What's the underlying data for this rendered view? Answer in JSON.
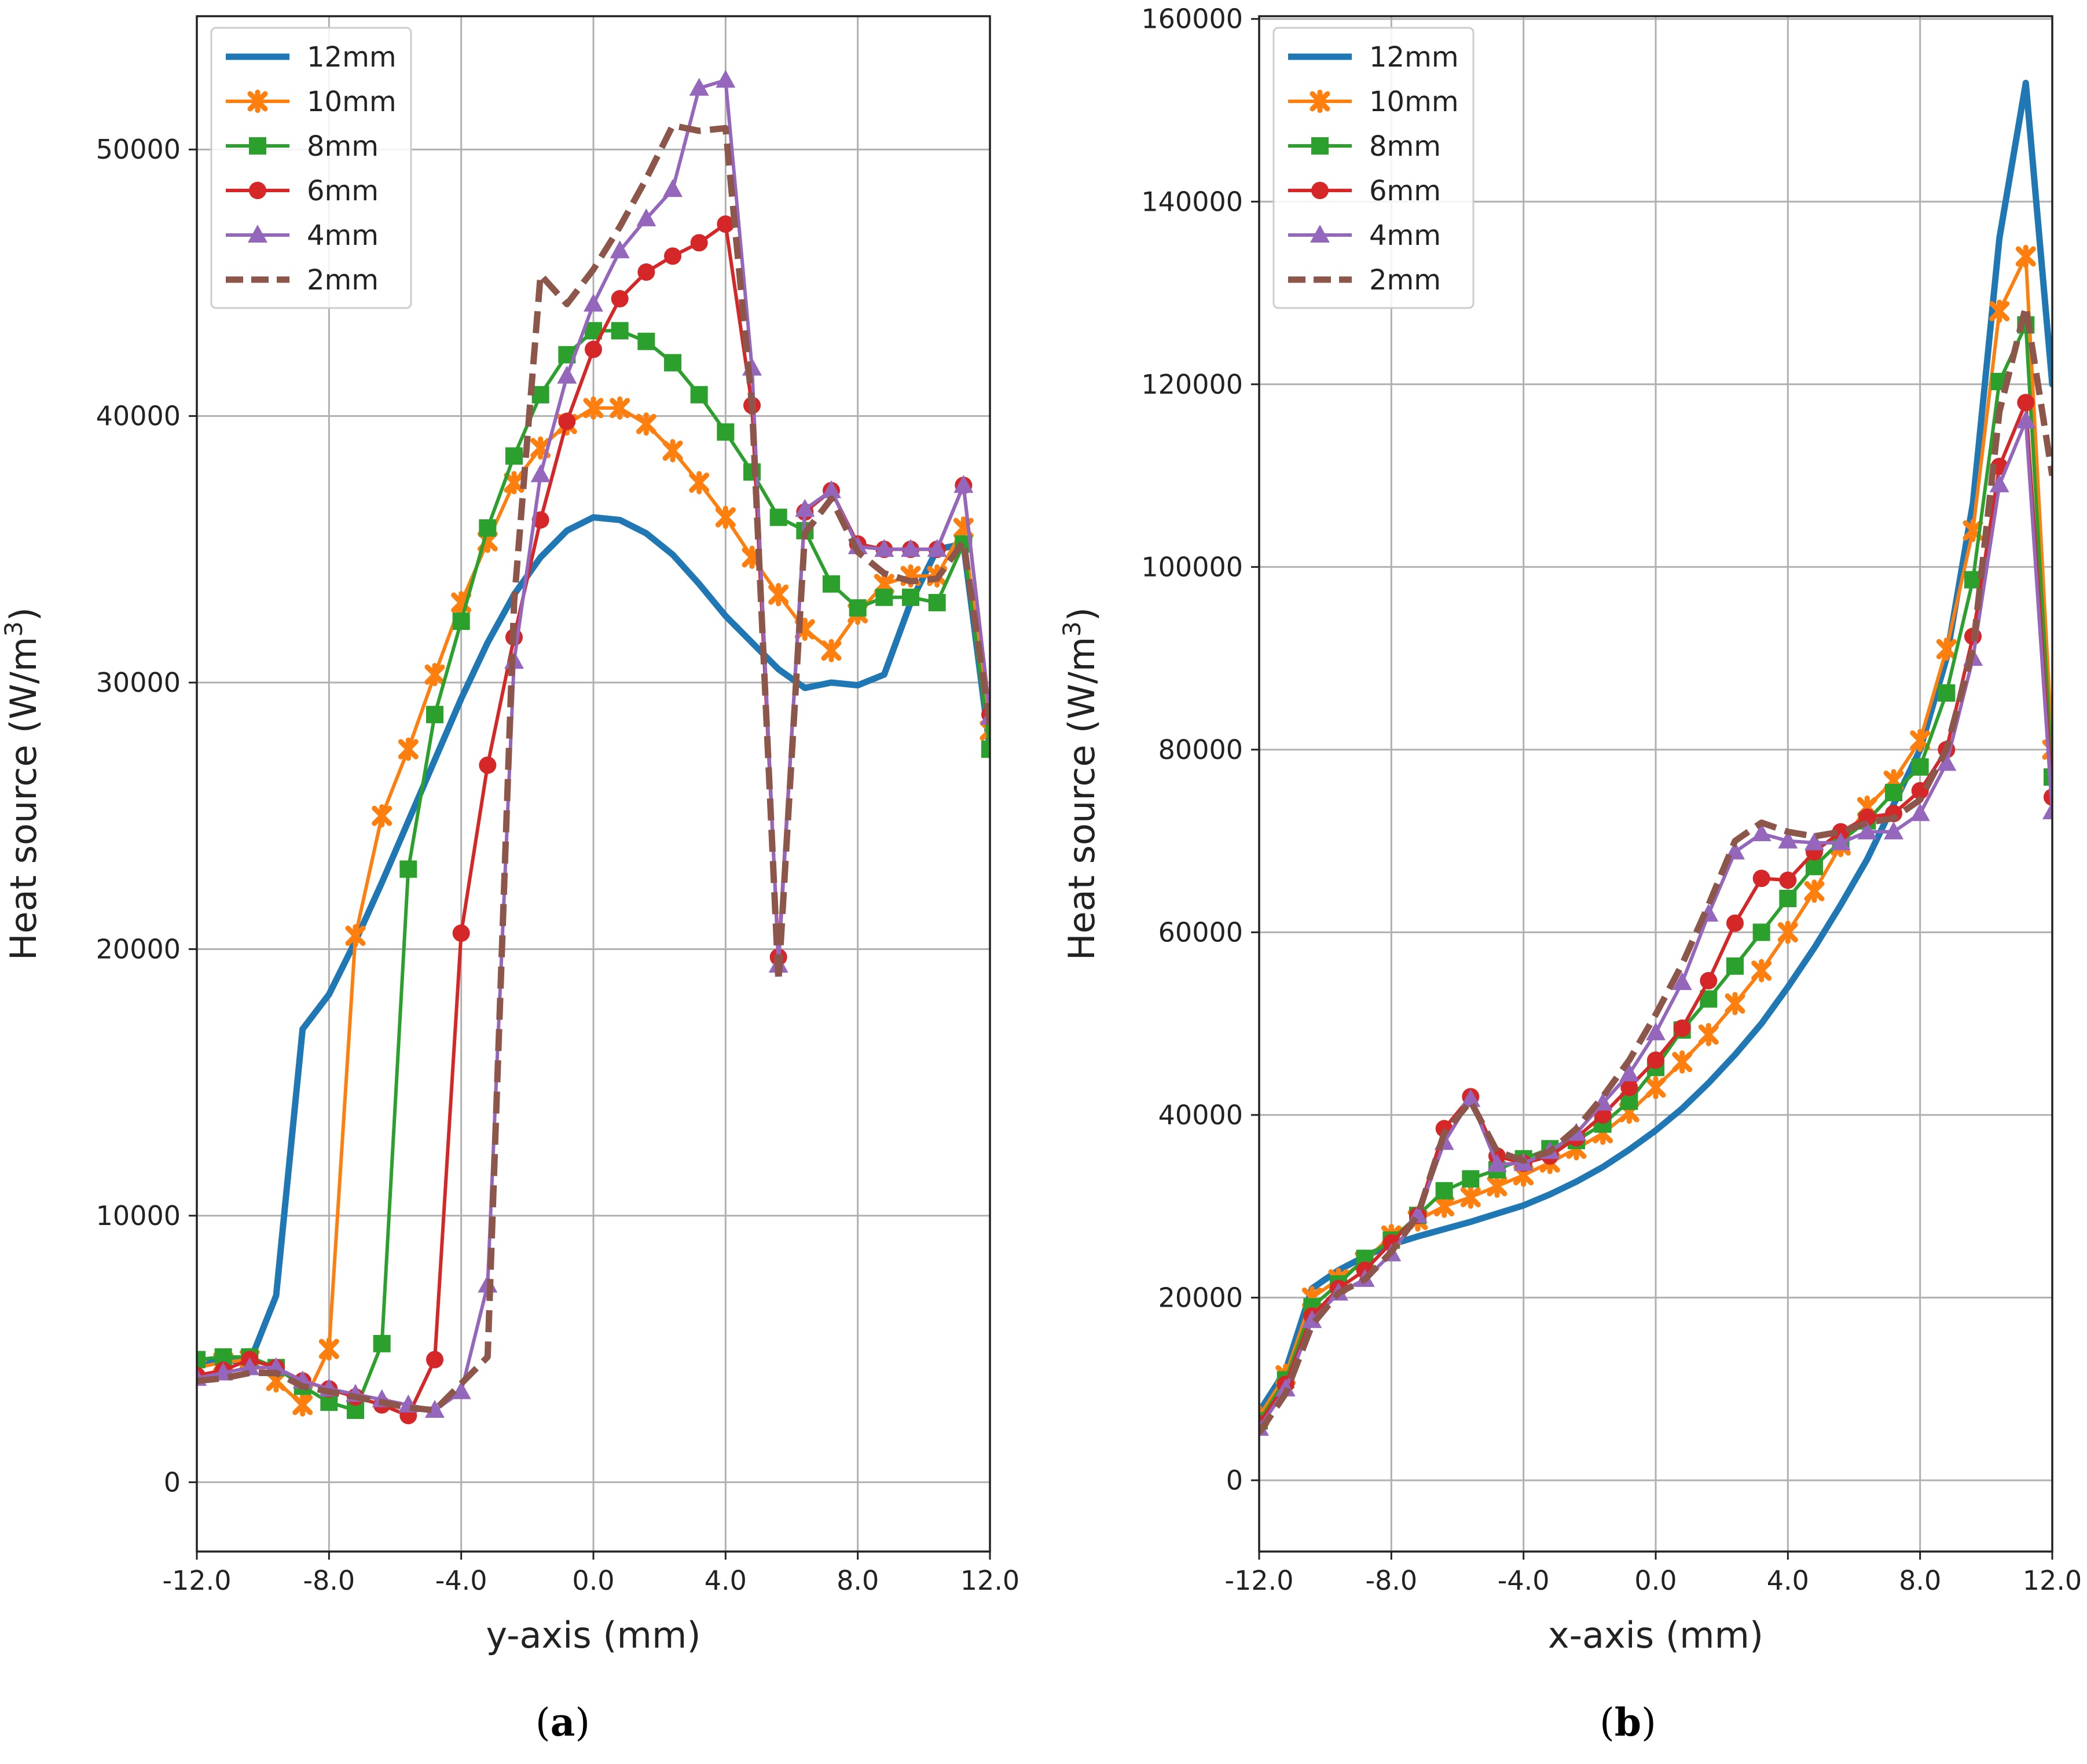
{
  "series_styles": [
    {
      "name": "12mm",
      "color": "#1f77b4",
      "marker": "none",
      "dash": "solid"
    },
    {
      "name": "10mm",
      "color": "#ff7f0e",
      "marker": "x",
      "dash": "solid"
    },
    {
      "name": "8mm",
      "color": "#2ca02c",
      "marker": "square",
      "dash": "solid"
    },
    {
      "name": "6mm",
      "color": "#d62728",
      "marker": "circle",
      "dash": "solid"
    },
    {
      "name": "4mm",
      "color": "#9467bd",
      "marker": "triangle",
      "dash": "solid"
    },
    {
      "name": "2mm",
      "color": "#8c564b",
      "marker": "none",
      "dash": "dashed"
    }
  ],
  "chart_data": [
    {
      "type": "line",
      "panel_label": "a",
      "xlabel": "y-axis (mm)",
      "ylabel": "Heat source (W/m",
      "ylabel_sup": "3",
      "ylabel_close": ")",
      "xlim": [
        -12,
        12
      ],
      "ylim": [
        -2600,
        55000
      ],
      "xticks": [
        -12,
        -8,
        -4,
        0,
        4,
        8,
        12
      ],
      "xtick_labels": [
        "-12.0",
        "-8.0",
        "-4.0",
        "0.0",
        "4.0",
        "8.0",
        "12.0"
      ],
      "yticks": [
        0,
        10000,
        20000,
        30000,
        40000,
        50000
      ],
      "ytick_labels": [
        "0",
        "10000",
        "20000",
        "30000",
        "40000",
        "50000"
      ],
      "grid": true,
      "legend": "top-left",
      "x": [
        -12,
        -11.2,
        -10.4,
        -9.6,
        -8.8,
        -8,
        -7.2,
        -6.4,
        -5.6,
        -4.8,
        -4,
        -3.2,
        -2.4,
        -1.6,
        -0.8,
        0,
        0.8,
        1.6,
        2.4,
        3.2,
        4,
        4.8,
        5.6,
        6.4,
        7.2,
        8,
        8.8,
        9.6,
        10.4,
        11.2,
        12
      ],
      "series": [
        {
          "name": "12mm",
          "values": [
            4500,
            4600,
            4500,
            7000,
            17000,
            18300,
            20300,
            22500,
            24800,
            27100,
            29400,
            31500,
            33300,
            34700,
            35700,
            36200,
            36100,
            35600,
            34800,
            33700,
            32500,
            31500,
            30500,
            29800,
            30000,
            29900,
            30300,
            33000,
            35000,
            35200,
            27500
          ]
        },
        {
          "name": "10mm",
          "values": [
            4300,
            4500,
            4600,
            3800,
            2900,
            5000,
            20500,
            25000,
            27500,
            30300,
            33000,
            35300,
            37500,
            38800,
            39700,
            40300,
            40300,
            39700,
            38700,
            37500,
            36200,
            34700,
            33300,
            32000,
            31200,
            32600,
            33700,
            34000,
            34000,
            35800,
            28200
          ]
        },
        {
          "name": "8mm",
          "values": [
            4600,
            4700,
            4700,
            4300,
            3600,
            3000,
            2700,
            5200,
            23000,
            28800,
            32300,
            35800,
            38500,
            40800,
            42300,
            43200,
            43200,
            42800,
            42000,
            40800,
            39400,
            37900,
            36200,
            35700,
            33700,
            32800,
            33200,
            33200,
            33000,
            35200,
            27500
          ]
        },
        {
          "name": "6mm",
          "values": [
            4000,
            4200,
            4600,
            4300,
            3800,
            3500,
            3200,
            2900,
            2500,
            4600,
            20600,
            26900,
            31700,
            36100,
            39800,
            42500,
            44400,
            45400,
            46000,
            46500,
            47200,
            40400,
            19700,
            36400,
            37200,
            35200,
            35000,
            35000,
            35000,
            37400,
            28800
          ]
        },
        {
          "name": "4mm",
          "values": [
            3900,
            4100,
            4300,
            4300,
            3800,
            3500,
            3300,
            3100,
            2900,
            2700,
            3400,
            7400,
            30800,
            37800,
            41500,
            44200,
            46200,
            47400,
            48500,
            52300,
            52600,
            41800,
            19400,
            36500,
            37200,
            35100,
            35000,
            35000,
            35000,
            37400,
            28700
          ]
        },
        {
          "name": "2mm",
          "values": [
            3800,
            3900,
            4100,
            4100,
            3600,
            3400,
            3200,
            3000,
            2800,
            2700,
            3700,
            4700,
            33000,
            45300,
            44200,
            45500,
            47100,
            48900,
            50900,
            50700,
            50800,
            40400,
            18800,
            35600,
            36900,
            34900,
            34100,
            33800,
            33900,
            35300,
            28400
          ]
        }
      ]
    },
    {
      "type": "line",
      "panel_label": "b",
      "xlabel": "x-axis (mm)",
      "ylabel": "Heat source (W/m",
      "ylabel_sup": "3",
      "ylabel_close": ")",
      "xlim": [
        -12,
        12
      ],
      "ylim": [
        -7800,
        160300
      ],
      "xticks": [
        -12,
        -8,
        -4,
        0,
        4,
        8,
        12
      ],
      "xtick_labels": [
        "-12.0",
        "-8.0",
        "-4.0",
        "0.0",
        "4.0",
        "8.0",
        "12.0"
      ],
      "yticks": [
        0,
        20000,
        40000,
        60000,
        80000,
        100000,
        120000,
        140000,
        160000
      ],
      "ytick_labels": [
        "0",
        "20000",
        "40000",
        "60000",
        "80000",
        "100000",
        "120000",
        "140000",
        "160000"
      ],
      "grid": true,
      "legend": "top-left",
      "x": [
        -12,
        -11.2,
        -10.4,
        -9.6,
        -8.8,
        -8,
        -7.2,
        -6.4,
        -5.6,
        -4.8,
        -4,
        -3.2,
        -2.4,
        -1.6,
        -0.8,
        0,
        0.8,
        1.6,
        2.4,
        3.2,
        4,
        4.8,
        5.6,
        6.4,
        7.2,
        8,
        8.8,
        9.6,
        10.4,
        11.2,
        12
      ],
      "series": [
        {
          "name": "12mm",
          "values": [
            7500,
            12000,
            21000,
            23000,
            24500,
            25800,
            26700,
            27500,
            28300,
            29200,
            30100,
            31300,
            32700,
            34300,
            36200,
            38300,
            40700,
            43500,
            46600,
            50000,
            54000,
            58300,
            63000,
            68000,
            74000,
            80000,
            90000,
            107000,
            136000,
            153000,
            120000
          ]
        },
        {
          "name": "10mm",
          "values": [
            7000,
            11500,
            20000,
            22000,
            24000,
            26800,
            28500,
            30000,
            31000,
            32200,
            33400,
            34800,
            36300,
            38000,
            40300,
            43000,
            45800,
            48800,
            52200,
            55800,
            60000,
            64500,
            69500,
            73700,
            76600,
            81000,
            91000,
            104000,
            128000,
            134000,
            80000
          ]
        },
        {
          "name": "8mm",
          "values": [
            6500,
            11000,
            19000,
            21500,
            24300,
            26300,
            29000,
            31700,
            33000,
            34000,
            35200,
            36300,
            37200,
            39000,
            41500,
            45200,
            49300,
            52700,
            56300,
            60000,
            63700,
            67200,
            70000,
            72200,
            75300,
            78100,
            86200,
            98600,
            120300,
            126500,
            77000
          ]
        },
        {
          "name": "6mm",
          "values": [
            6200,
            10500,
            18000,
            21000,
            23000,
            26000,
            29000,
            38500,
            42000,
            35500,
            34700,
            35500,
            37500,
            40000,
            43000,
            46000,
            49500,
            54700,
            61000,
            65900,
            65700,
            68800,
            71000,
            72600,
            73000,
            75500,
            80000,
            92400,
            111000,
            118000,
            74800
          ]
        },
        {
          "name": "4mm",
          "values": [
            5700,
            10000,
            17500,
            20500,
            22000,
            24800,
            29000,
            37000,
            41700,
            34600,
            34700,
            36000,
            38000,
            41300,
            44500,
            49000,
            54500,
            62000,
            68800,
            70800,
            70000,
            69800,
            69800,
            71000,
            71000,
            73000,
            78500,
            90000,
            109000,
            116000,
            73200
          ]
        },
        {
          "name": "2mm",
          "values": [
            5200,
            9500,
            17000,
            20500,
            22000,
            25000,
            29000,
            38000,
            41500,
            36000,
            35000,
            36000,
            38500,
            42000,
            46000,
            51000,
            56500,
            63000,
            70000,
            72000,
            71000,
            70500,
            71000,
            72000,
            72500,
            74500,
            80000,
            91000,
            117000,
            128500,
            110000
          ]
        }
      ]
    }
  ]
}
